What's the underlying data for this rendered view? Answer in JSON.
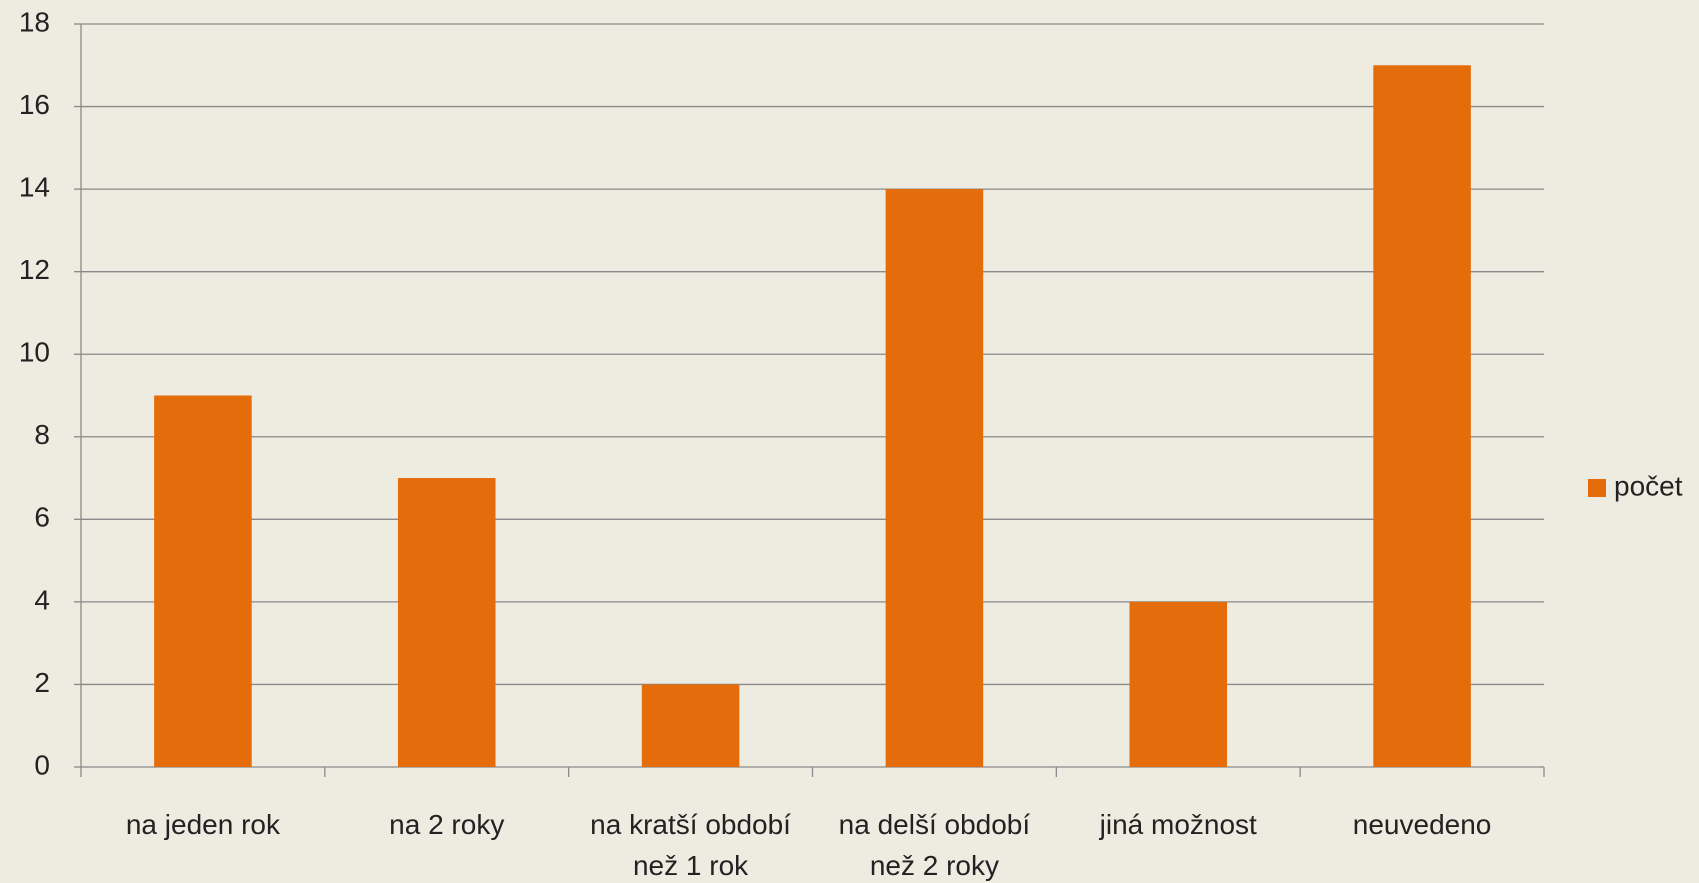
{
  "chart_data": {
    "type": "bar",
    "categories": [
      "na jeden rok",
      "na 2 roky",
      "na kratší období než 1 rok",
      "na delší období než 2 roky",
      "jiná možnost",
      "neuvedeno"
    ],
    "series": [
      {
        "name": "počet",
        "color": "#e46c0a",
        "values": [
          9,
          7,
          2,
          14,
          4,
          17
        ]
      }
    ],
    "ylim": [
      0,
      18
    ],
    "yticks": [
      0,
      2,
      4,
      6,
      8,
      10,
      12,
      14,
      16,
      18
    ],
    "grid": true,
    "legend": "right"
  }
}
